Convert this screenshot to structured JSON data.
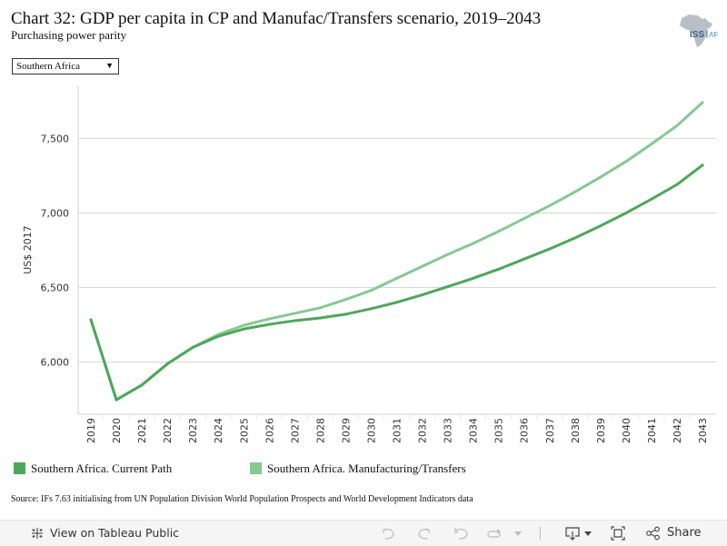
{
  "header": {
    "title": "Chart 32: GDP per capita in CP and Manufac/Transfers scenario, 2019–2043",
    "subtitle": "Purchasing power parity",
    "logo_text_main": "ISS",
    "logo_text_sub": "AF"
  },
  "filter": {
    "selected": "Southern Africa"
  },
  "legend": {
    "items": [
      {
        "label": "Southern Africa. Current Path",
        "color": "#4ea65a"
      },
      {
        "label": "Southern Africa. Manufacturing/Transfers",
        "color": "#87c893"
      }
    ]
  },
  "source": "Source: IFs 7.63 initialising from UN Population Division World Population Prospects and World Development Indicators data",
  "toolbar": {
    "view_label": "View on Tableau Public",
    "share_label": "Share"
  },
  "chart_data": {
    "type": "line",
    "title": "Chart 32: GDP per capita in CP and Manufac/Transfers scenario, 2019–2043",
    "subtitle": "Purchasing power parity",
    "xlabel": "",
    "ylabel": "US$ 2017",
    "ylim": [
      5650,
      7850
    ],
    "yticks": [
      6000,
      6500,
      7000,
      7500
    ],
    "ytick_labels": [
      "6,000",
      "6,500",
      "7,000",
      "7,500"
    ],
    "grid": true,
    "legend_position": "bottom",
    "x": [
      "2019",
      "2020",
      "2021",
      "2022",
      "2023",
      "2024",
      "2025",
      "2026",
      "2027",
      "2028",
      "2029",
      "2030",
      "2031",
      "2032",
      "2033",
      "2034",
      "2035",
      "2036",
      "2037",
      "2038",
      "2039",
      "2040",
      "2041",
      "2042",
      "2043"
    ],
    "series": [
      {
        "name": "Southern Africa. Current Path",
        "color": "#4ea65a",
        "values": [
          6284,
          5747,
          5846,
          5988,
          6099,
          6173,
          6222,
          6253,
          6278,
          6296,
          6321,
          6358,
          6401,
          6451,
          6506,
          6562,
          6623,
          6691,
          6759,
          6833,
          6914,
          7000,
          7093,
          7191,
          7321
        ]
      },
      {
        "name": "Southern Africa. Manufacturing/Transfers",
        "color": "#87c893",
        "values": [
          6284,
          5747,
          5846,
          5988,
          6099,
          6185,
          6247,
          6290,
          6327,
          6364,
          6420,
          6481,
          6562,
          6642,
          6722,
          6796,
          6877,
          6963,
          7049,
          7142,
          7241,
          7346,
          7463,
          7586,
          7741
        ]
      }
    ]
  }
}
